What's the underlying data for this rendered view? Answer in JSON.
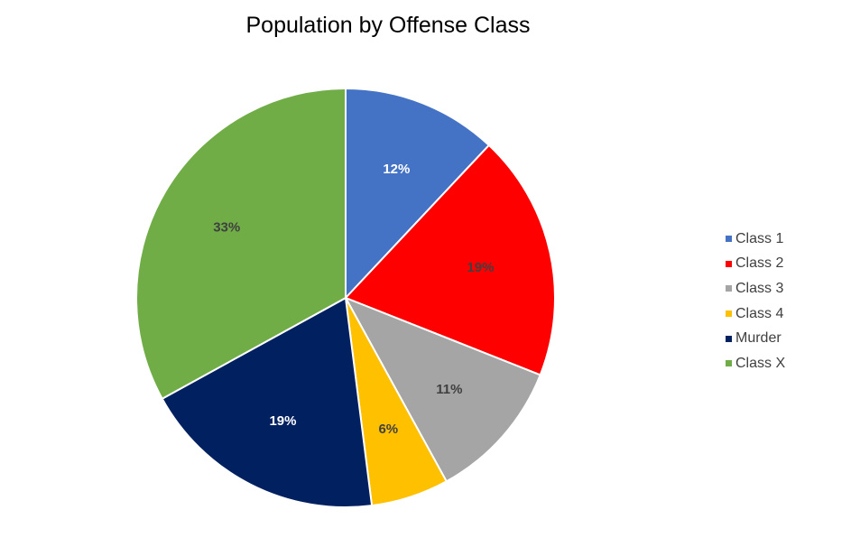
{
  "chart_data": {
    "type": "pie",
    "title": "Population by Offense Class",
    "categories": [
      "Class 1",
      "Class 2",
      "Class 3",
      "Class 4",
      "Murder",
      "Class X"
    ],
    "values": [
      12,
      19,
      11,
      6,
      19,
      33
    ],
    "labels": [
      "12%",
      "19%",
      "11%",
      "6%",
      "19%",
      "33%"
    ],
    "colors": [
      "#4472C4",
      "#FF0000",
      "#A5A5A5",
      "#FFC000",
      "#002060",
      "#70AD47"
    ],
    "label_colors": [
      "#FFFFFF",
      "#404040",
      "#404040",
      "#404040",
      "#FFFFFF",
      "#404040"
    ],
    "legend_position": "right"
  }
}
